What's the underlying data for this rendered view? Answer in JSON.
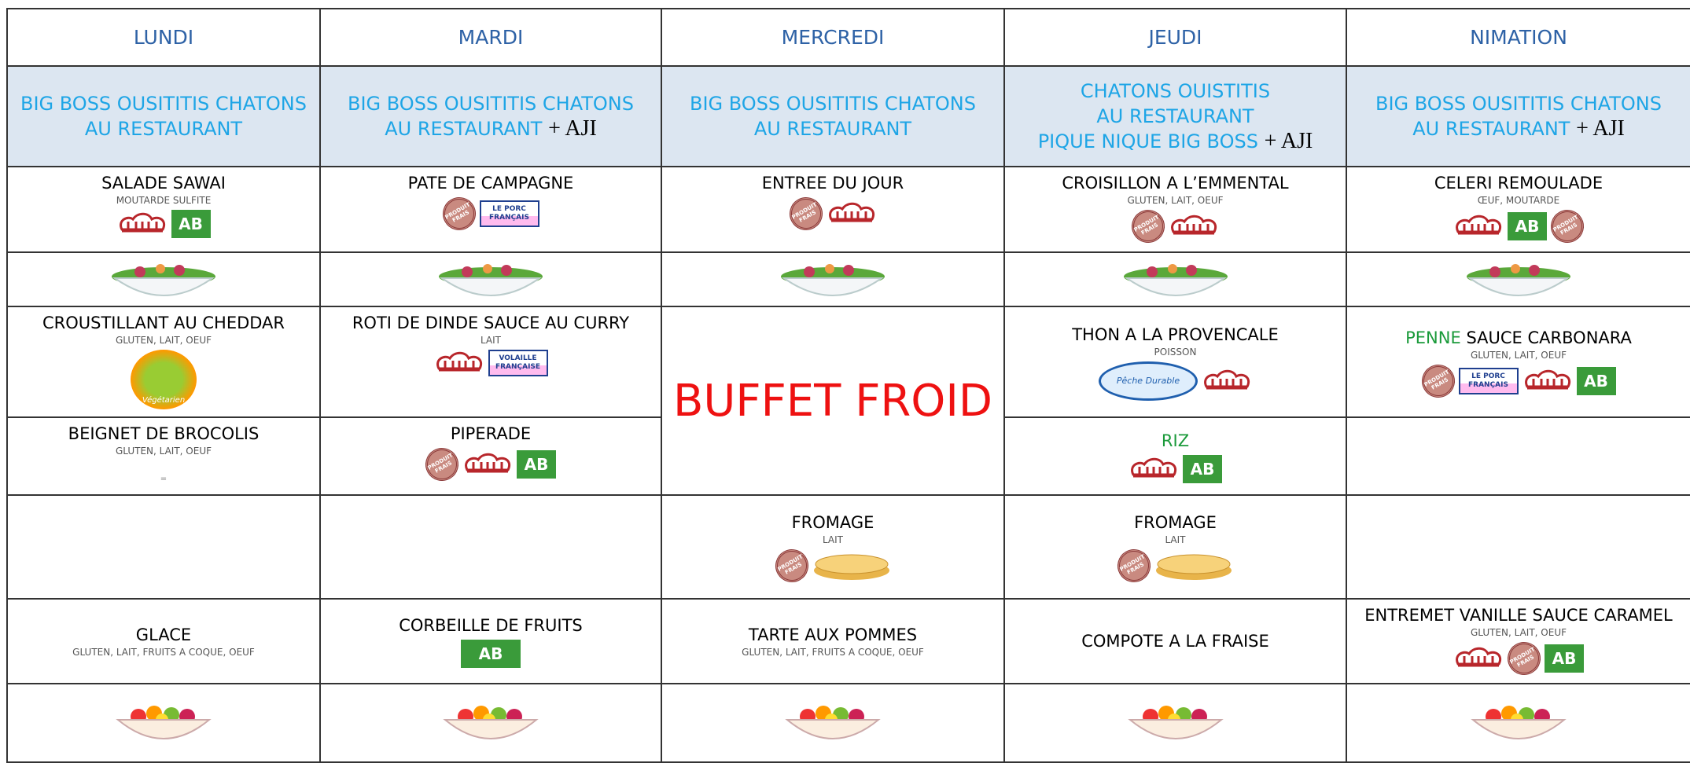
{
  "days": [
    {
      "name": "LUNDI",
      "group": [
        "BIG BOSS OUSITITIS CHATONS",
        "AU RESTAURANT"
      ],
      "starter": {
        "dish": "SALADE SAWAI",
        "allergens": "MOUTARDE SULFITE",
        "labels": [
          "AB"
        ]
      },
      "main": {
        "dish": "CROUSTILLANT AU CHEDDAR",
        "allergens": "GLUTEN, LAIT, OEUF",
        "labels": [
          "Végétarien"
        ]
      },
      "side": {
        "dish": "BEIGNET DE BROCOLIS",
        "allergens": "GLUTEN, LAIT, OEUF",
        "note": "="
      },
      "dessert": {
        "dish": "GLACE",
        "allergens": "GLUTEN, LAIT, FRUITS A COQUE, OEUF"
      }
    },
    {
      "name": "MARDI",
      "group": [
        "BIG BOSS OUSITITIS CHATONS",
        "AU RESTAURANT"
      ],
      "group_extra": "+ AJI",
      "starter": {
        "dish": "PATE DE CAMPAGNE",
        "labels": [
          "PRODUIT FRAIS",
          "LE PORC FRANÇAIS"
        ]
      },
      "main": {
        "dish": "ROTI DE DINDE SAUCE AU CURRY",
        "allergens": "LAIT",
        "labels": [
          "VOLAILLE FRANÇAISE"
        ]
      },
      "side": {
        "dish": "PIPERADE",
        "labels": [
          "PRODUIT FRAIS",
          "AB"
        ]
      },
      "dessert": {
        "dish": "CORBEILLE DE FRUITS",
        "labels": [
          "AB"
        ]
      }
    },
    {
      "name": "MERCREDI",
      "group": [
        "BIG BOSS OUSITITIS CHATONS",
        "AU RESTAURANT"
      ],
      "starter": {
        "dish": "ENTREE DU JOUR",
        "labels": [
          "PRODUIT FRAIS"
        ]
      },
      "main": {
        "dish": "BUFFET FROID"
      },
      "cheese": {
        "dish": "FROMAGE",
        "allergens": "LAIT",
        "labels": [
          "PRODUIT FRAIS"
        ]
      },
      "dessert": {
        "dish": "TARTE AUX POMMES",
        "allergens": "GLUTEN, LAIT, FRUITS A COQUE, OEUF"
      }
    },
    {
      "name": "JEUDI",
      "group": [
        "CHATONS OUISTITIS",
        "AU RESTAURANT",
        "PIQUE NIQUE BIG BOSS"
      ],
      "group_extra": "+ AJI",
      "starter": {
        "dish": "CROISILLON A L’EMMENTAL",
        "allergens": "GLUTEN, LAIT, OEUF",
        "labels": [
          "PRODUIT FRAIS"
        ]
      },
      "main": {
        "dish": "THON A LA PROVENCALE",
        "allergens": "POISSON",
        "labels": [
          "Pêche Durable"
        ]
      },
      "side": {
        "dish_green": "RIZ",
        "labels": [
          "AB"
        ]
      },
      "cheese": {
        "dish": "FROMAGE",
        "allergens": "LAIT",
        "labels": [
          "PRODUIT FRAIS"
        ]
      },
      "dessert": {
        "dish": "COMPOTE A LA FRAISE"
      }
    },
    {
      "name": "NIMATION",
      "group": [
        "BIG BOSS OUSITITIS CHATONS",
        "AU RESTAURANT"
      ],
      "group_extra": "+ AJI",
      "starter": {
        "dish": "CELERI REMOULADE",
        "allergens": "ŒUF, MOUTARDE",
        "labels": [
          "AB",
          "PRODUIT FRAIS"
        ]
      },
      "main": {
        "dish_green": "PENNE",
        "dish": "SAUCE CARBONARA",
        "allergens": "GLUTEN, LAIT, OEUF",
        "labels": [
          "PRODUIT FRAIS",
          "LE PORC FRANÇAIS",
          "AB"
        ]
      },
      "dessert": {
        "dish": "ENTREMET VANILLE SAUCE CARAMEL",
        "allergens": "GLUTEN, LAIT, OEUF",
        "labels": [
          "PRODUIT FRAIS",
          "AB"
        ]
      }
    }
  ]
}
